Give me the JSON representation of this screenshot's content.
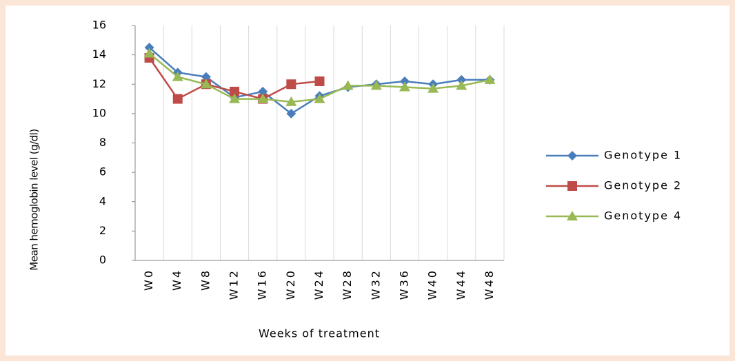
{
  "chart_data": {
    "type": "line",
    "x_label": "Weeks of treatment",
    "y_label": "Mean hemoglobin level (g/dl)",
    "categories": [
      "W0",
      "W4",
      "W8",
      "W12",
      "W16",
      "W20",
      "W24",
      "W28",
      "W32",
      "W36",
      "W40",
      "W44",
      "W48"
    ],
    "series": [
      {
        "name": "Genotype 1",
        "color": "#4a7ebb",
        "marker": "diamond",
        "values": [
          14.5,
          12.8,
          12.5,
          11.1,
          11.5,
          10,
          11.2,
          11.8,
          12,
          12.2,
          12,
          12.3,
          12.3
        ]
      },
      {
        "name": "Genotype 2",
        "color": "#be4b48",
        "marker": "square",
        "values": [
          13.8,
          11,
          12,
          11.5,
          11,
          12,
          12.2,
          null,
          null,
          null,
          null,
          null,
          null
        ]
      },
      {
        "name": "Genotype 4",
        "color": "#98b954",
        "marker": "triangle",
        "values": [
          14.1,
          12.5,
          12,
          11,
          11,
          10.8,
          11,
          11.9,
          11.9,
          11.8,
          11.7,
          11.9,
          12.3
        ]
      }
    ],
    "ylim": [
      0,
      16
    ],
    "yticks": [
      0,
      2,
      4,
      6,
      8,
      10,
      12,
      14,
      16
    ],
    "grid": "x",
    "legend": "right"
  }
}
